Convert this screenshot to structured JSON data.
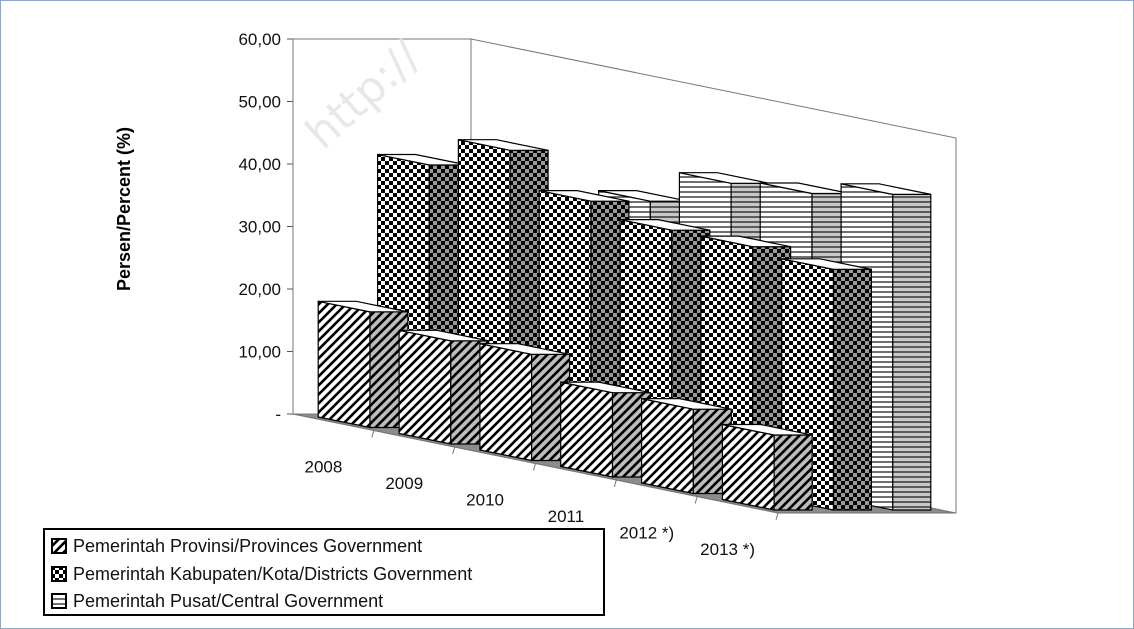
{
  "watermark": "http://",
  "chart_data": {
    "type": "bar",
    "categories": [
      "2008",
      "2009",
      "2010",
      "2011",
      "2012 *)",
      "2013 *)"
    ],
    "ylabel": "Persen/Percent (%)",
    "ylim": [
      0,
      60
    ],
    "yticks": [
      "-",
      "10,00",
      "20,00",
      "30,00",
      "40,00",
      "50,00",
      "60,00"
    ],
    "series": [
      {
        "name": "Pemerintah Provinsi/Provinces Government",
        "values": [
          18.5,
          16.5,
          17.0,
          13.5,
          13.5,
          12.0
        ]
      },
      {
        "name": "Pemerintah Kabupaten/Kota/Districts Government",
        "values": [
          42.0,
          47.0,
          41.5,
          39.5,
          39.5,
          38.5
        ]
      },
      {
        "name": "Pemerintah Pusat/Central Government",
        "values": [
          39.5,
          36.5,
          41.5,
          47.0,
          48.0,
          50.5
        ]
      }
    ],
    "legend_position": "bottom-left"
  }
}
